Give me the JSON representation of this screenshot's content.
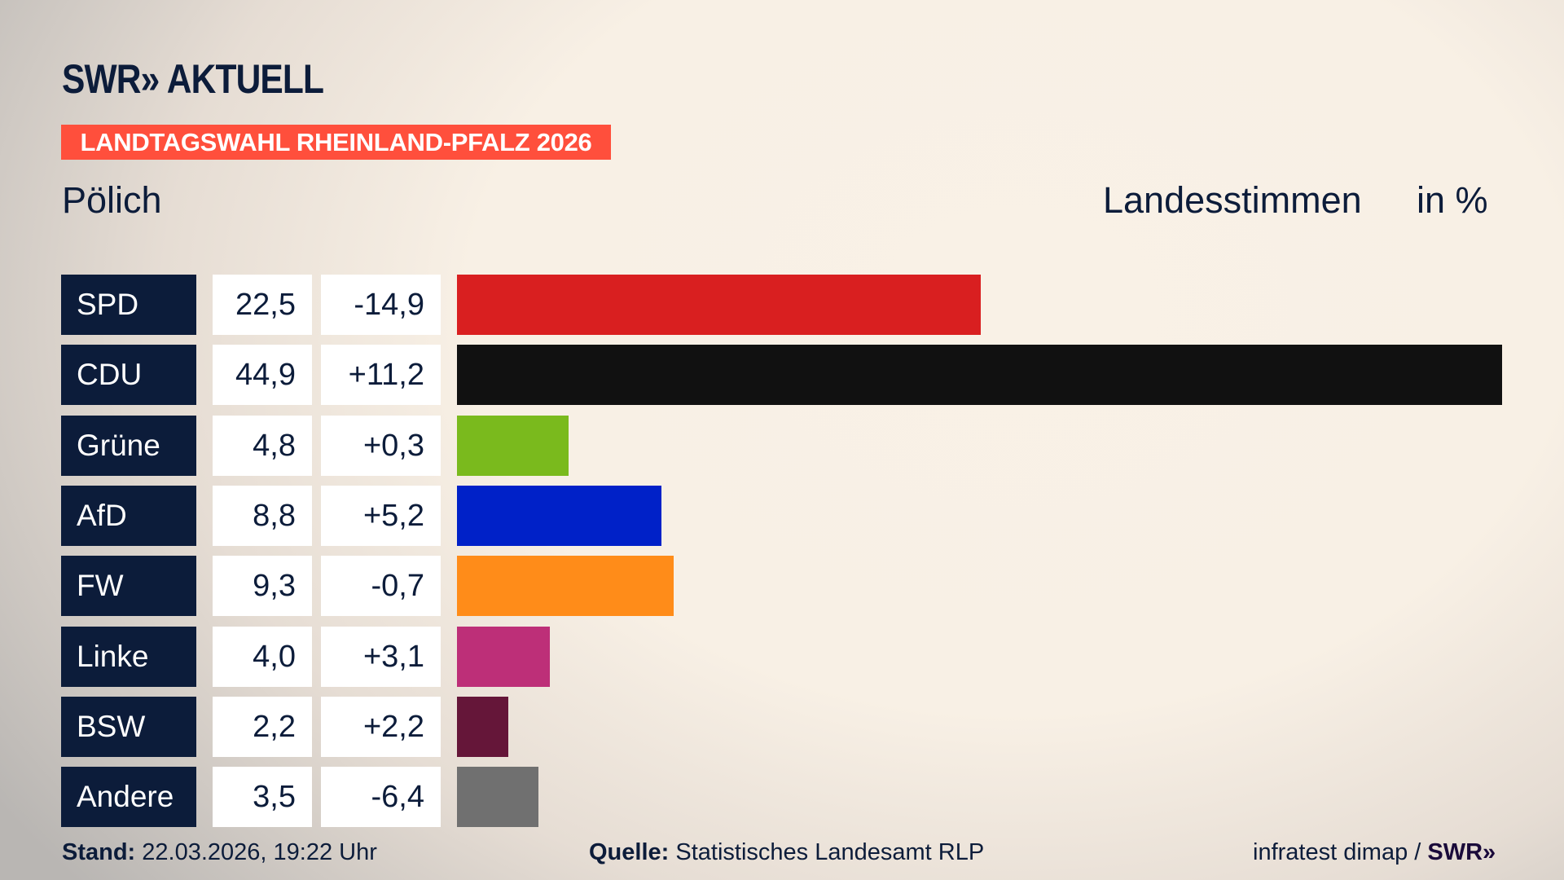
{
  "header": {
    "logo_text": "SWR» AKTUELL",
    "banner": "LANDTAGSWAHL RHEINLAND-PFALZ 2026",
    "region": "Pölich",
    "measure": "Landesstimmen",
    "unit": "in %"
  },
  "chart_data": {
    "type": "bar",
    "orientation": "horizontal",
    "categories": [
      "SPD",
      "CDU",
      "Grüne",
      "AfD",
      "FW",
      "Linke",
      "BSW",
      "Andere"
    ],
    "values": [
      22.5,
      44.9,
      4.8,
      8.8,
      9.3,
      4.0,
      2.2,
      3.5
    ],
    "value_labels": [
      "22,5",
      "44,9",
      "4,8",
      "8,8",
      "9,3",
      "4,0",
      "2,2",
      "3,5"
    ],
    "changes": [
      -14.9,
      11.2,
      0.3,
      5.2,
      -0.7,
      3.1,
      2.2,
      -6.4
    ],
    "change_labels": [
      "-14,9",
      "+11,2",
      "+0,3",
      "+5,2",
      "-0,7",
      "+3,1",
      "+2,2",
      "-6,4"
    ],
    "colors": [
      "#d91f20",
      "#111111",
      "#7aba1d",
      "#0021c8",
      "#ff8c19",
      "#bd2f78",
      "#651639",
      "#707070"
    ],
    "xlim": [
      0,
      44.9
    ]
  },
  "footer": {
    "stand_label": "Stand:",
    "stand_value": "22.03.2026, 19:22 Uhr",
    "source_label": "Quelle:",
    "source_value": "Statistisches Landesamt RLP",
    "credit": "infratest dimap /",
    "credit_logo": "SWR»"
  }
}
